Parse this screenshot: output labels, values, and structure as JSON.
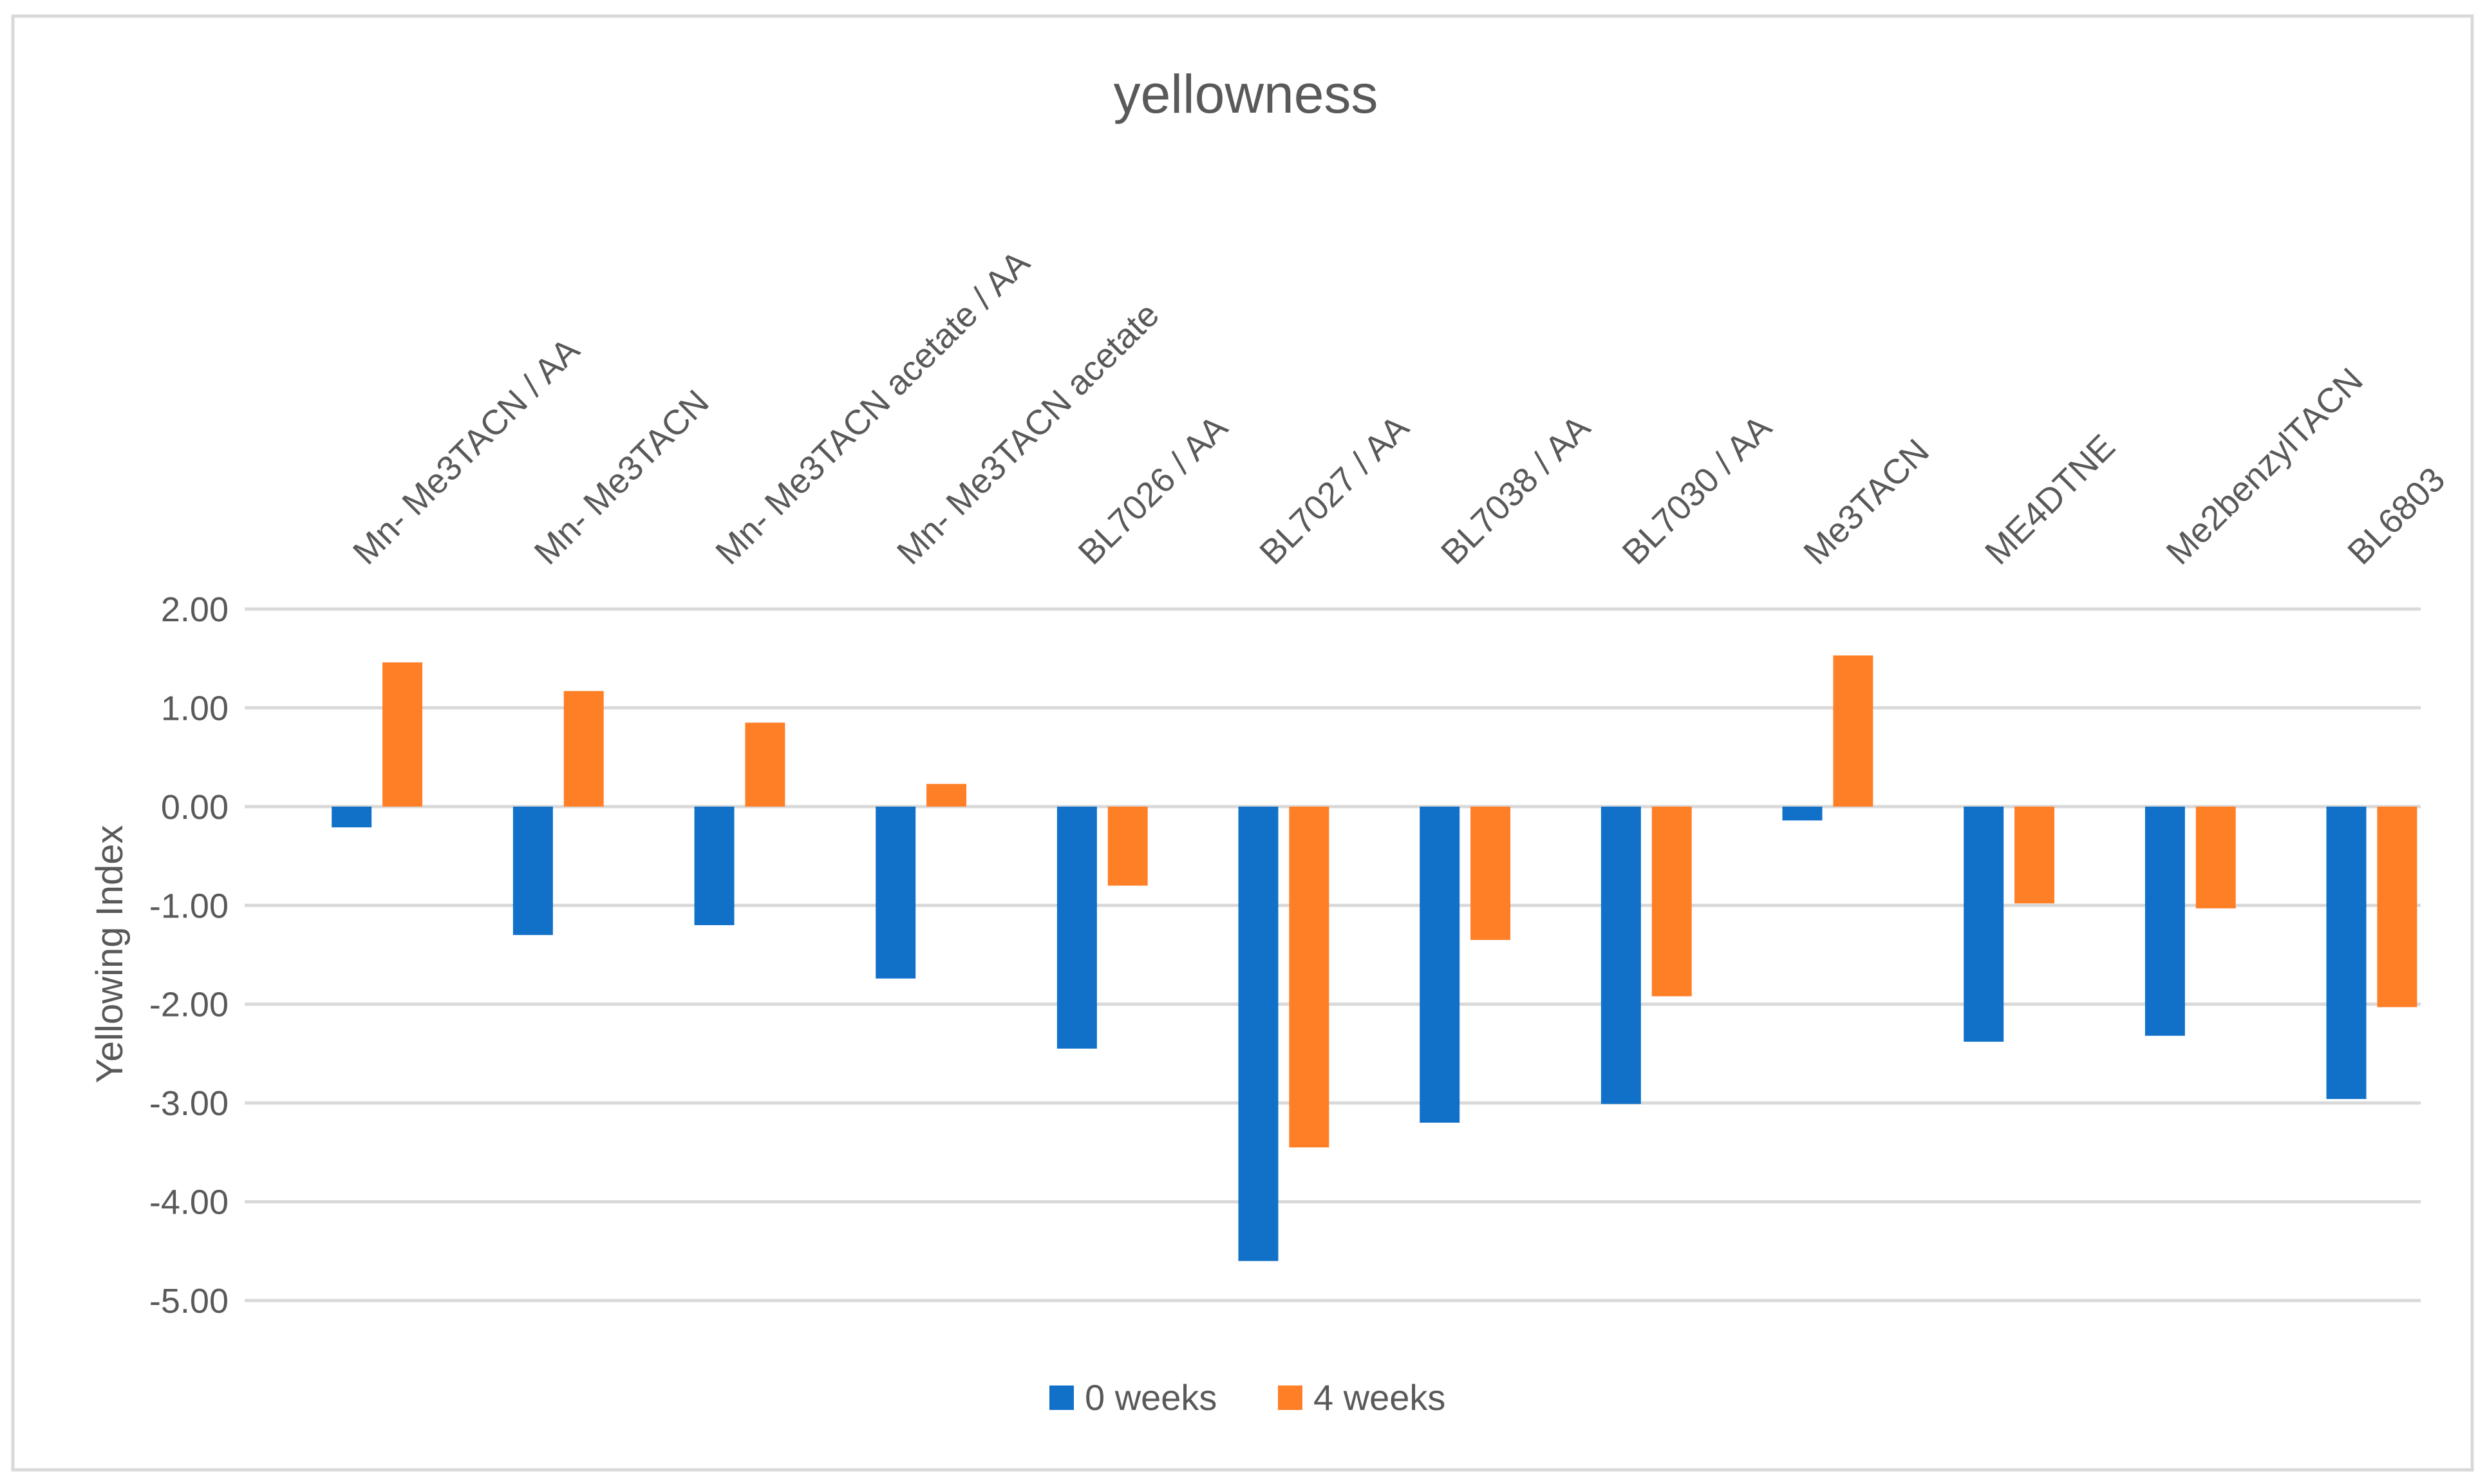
{
  "chart_data": {
    "type": "bar",
    "title": "yellowness",
    "xlabel": "",
    "ylabel": "Yellowing Index",
    "ylim": [
      -5,
      2
    ],
    "yticks": [
      "2.00",
      "1.00",
      "0.00",
      "-1.00",
      "-2.00",
      "-3.00",
      "-4.00",
      "-5.00"
    ],
    "grid": true,
    "legend": "bottom",
    "categories": [
      "Mn- Me3TACN / AA",
      "Mn- Me3TACN",
      "Mn- Me3TACN acetate / AA",
      "Mn- Me3TACN acetate",
      "BL7026 / AA",
      "BL7027 / AA",
      "BL7038 / AA",
      "BL7030 / AA",
      "Me3TACN",
      "ME4DTNE",
      "Me2benzylTACN",
      "BL6803"
    ],
    "series": [
      {
        "name": "0 weeks",
        "color": "#1170C8",
        "values": [
          -0.21,
          -1.3,
          -1.2,
          -1.74,
          -2.45,
          -4.6,
          -3.2,
          -3.01,
          -0.14,
          -2.38,
          -2.32,
          -2.96
        ]
      },
      {
        "name": "4 weeks",
        "color": "#FF7F27",
        "values": [
          1.46,
          1.17,
          0.85,
          0.23,
          -0.8,
          -3.45,
          -1.35,
          -1.92,
          1.53,
          -0.98,
          -1.03,
          -2.03
        ]
      }
    ]
  }
}
